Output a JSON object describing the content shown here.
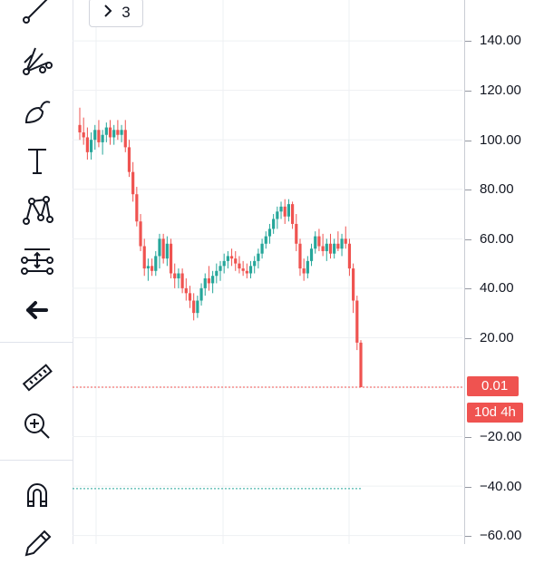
{
  "toolbar": {
    "tools": [
      {
        "name": "trend-line-icon"
      },
      {
        "name": "gann-fan-icon"
      },
      {
        "name": "brush-icon"
      },
      {
        "name": "text-icon"
      },
      {
        "name": "pattern-icon"
      },
      {
        "name": "prediction-icon"
      },
      {
        "name": "back-arrow-icon"
      },
      {
        "name": "ruler-icon"
      },
      {
        "name": "zoom-in-icon"
      },
      {
        "name": "magnet-icon"
      },
      {
        "name": "pencil-icon"
      }
    ]
  },
  "collapse_badge": {
    "label": "3",
    "icon": "chevron-right-icon"
  },
  "price_axis": {
    "ticks": [
      "140.00",
      "120.00",
      "100.00",
      "80.00",
      "60.00",
      "40.00",
      "20.00",
      "−20.00",
      "−40.00",
      "−60.00"
    ],
    "current_price": "0.01",
    "countdown": "10d 4h"
  },
  "colors": {
    "up": "#26a69a",
    "down": "#ef5350",
    "grid": "#eef0f3",
    "dotted_line": "#ef5350",
    "alt_line": "#26a69a"
  },
  "chart_data": {
    "type": "candlestick",
    "ylim": [
      -60,
      150
    ],
    "last_price": 0.01,
    "candles": [
      {
        "o": 106,
        "h": 113,
        "l": 100,
        "c": 103
      },
      {
        "o": 103,
        "h": 109,
        "l": 98,
        "c": 101
      },
      {
        "o": 101,
        "h": 105,
        "l": 92,
        "c": 95
      },
      {
        "o": 95,
        "h": 103,
        "l": 92,
        "c": 100
      },
      {
        "o": 100,
        "h": 106,
        "l": 96,
        "c": 104
      },
      {
        "o": 104,
        "h": 108,
        "l": 97,
        "c": 99
      },
      {
        "o": 99,
        "h": 104,
        "l": 94,
        "c": 102
      },
      {
        "o": 102,
        "h": 107,
        "l": 99,
        "c": 105
      },
      {
        "o": 105,
        "h": 108,
        "l": 98,
        "c": 101
      },
      {
        "o": 101,
        "h": 106,
        "l": 98,
        "c": 104
      },
      {
        "o": 104,
        "h": 108,
        "l": 100,
        "c": 102
      },
      {
        "o": 102,
        "h": 106,
        "l": 99,
        "c": 104
      },
      {
        "o": 104,
        "h": 108,
        "l": 95,
        "c": 97
      },
      {
        "o": 97,
        "h": 100,
        "l": 85,
        "c": 87
      },
      {
        "o": 87,
        "h": 91,
        "l": 75,
        "c": 78
      },
      {
        "o": 78,
        "h": 81,
        "l": 65,
        "c": 67
      },
      {
        "o": 67,
        "h": 70,
        "l": 55,
        "c": 57
      },
      {
        "o": 57,
        "h": 60,
        "l": 45,
        "c": 48
      },
      {
        "o": 48,
        "h": 52,
        "l": 43,
        "c": 49
      },
      {
        "o": 49,
        "h": 52,
        "l": 45,
        "c": 47
      },
      {
        "o": 47,
        "h": 55,
        "l": 45,
        "c": 53
      },
      {
        "o": 53,
        "h": 62,
        "l": 48,
        "c": 60
      },
      {
        "o": 60,
        "h": 62,
        "l": 50,
        "c": 52
      },
      {
        "o": 52,
        "h": 61,
        "l": 49,
        "c": 58
      },
      {
        "o": 58,
        "h": 60,
        "l": 44,
        "c": 46
      },
      {
        "o": 46,
        "h": 50,
        "l": 40,
        "c": 44
      },
      {
        "o": 44,
        "h": 48,
        "l": 40,
        "c": 46
      },
      {
        "o": 46,
        "h": 48,
        "l": 38,
        "c": 40
      },
      {
        "o": 40,
        "h": 44,
        "l": 35,
        "c": 38
      },
      {
        "o": 38,
        "h": 41,
        "l": 32,
        "c": 35
      },
      {
        "o": 35,
        "h": 38,
        "l": 27,
        "c": 30
      },
      {
        "o": 30,
        "h": 37,
        "l": 28,
        "c": 35
      },
      {
        "o": 35,
        "h": 42,
        "l": 33,
        "c": 40
      },
      {
        "o": 40,
        "h": 46,
        "l": 37,
        "c": 44
      },
      {
        "o": 44,
        "h": 49,
        "l": 39,
        "c": 42
      },
      {
        "o": 42,
        "h": 47,
        "l": 38,
        "c": 45
      },
      {
        "o": 45,
        "h": 50,
        "l": 42,
        "c": 47
      },
      {
        "o": 47,
        "h": 51,
        "l": 43,
        "c": 49
      },
      {
        "o": 49,
        "h": 54,
        "l": 46,
        "c": 51
      },
      {
        "o": 51,
        "h": 55,
        "l": 48,
        "c": 53
      },
      {
        "o": 53,
        "h": 56,
        "l": 49,
        "c": 52
      },
      {
        "o": 52,
        "h": 55,
        "l": 47,
        "c": 50
      },
      {
        "o": 50,
        "h": 53,
        "l": 46,
        "c": 48
      },
      {
        "o": 48,
        "h": 51,
        "l": 45,
        "c": 47
      },
      {
        "o": 47,
        "h": 50,
        "l": 44,
        "c": 46
      },
      {
        "o": 46,
        "h": 51,
        "l": 44,
        "c": 49
      },
      {
        "o": 49,
        "h": 53,
        "l": 46,
        "c": 51
      },
      {
        "o": 51,
        "h": 56,
        "l": 48,
        "c": 54
      },
      {
        "o": 54,
        "h": 60,
        "l": 52,
        "c": 58
      },
      {
        "o": 58,
        "h": 63,
        "l": 56,
        "c": 61
      },
      {
        "o": 61,
        "h": 66,
        "l": 58,
        "c": 64
      },
      {
        "o": 64,
        "h": 70,
        "l": 62,
        "c": 68
      },
      {
        "o": 68,
        "h": 73,
        "l": 64,
        "c": 71
      },
      {
        "o": 71,
        "h": 75,
        "l": 68,
        "c": 73
      },
      {
        "o": 73,
        "h": 76,
        "l": 66,
        "c": 69
      },
      {
        "o": 69,
        "h": 76,
        "l": 67,
        "c": 74
      },
      {
        "o": 74,
        "h": 75,
        "l": 64,
        "c": 66
      },
      {
        "o": 66,
        "h": 70,
        "l": 55,
        "c": 58
      },
      {
        "o": 58,
        "h": 60,
        "l": 45,
        "c": 48
      },
      {
        "o": 48,
        "h": 52,
        "l": 43,
        "c": 46
      },
      {
        "o": 46,
        "h": 53,
        "l": 44,
        "c": 51
      },
      {
        "o": 51,
        "h": 58,
        "l": 49,
        "c": 56
      },
      {
        "o": 56,
        "h": 63,
        "l": 54,
        "c": 61
      },
      {
        "o": 61,
        "h": 64,
        "l": 55,
        "c": 57
      },
      {
        "o": 57,
        "h": 62,
        "l": 53,
        "c": 55
      },
      {
        "o": 55,
        "h": 60,
        "l": 51,
        "c": 58
      },
      {
        "o": 58,
        "h": 62,
        "l": 52,
        "c": 54
      },
      {
        "o": 54,
        "h": 60,
        "l": 52,
        "c": 58
      },
      {
        "o": 58,
        "h": 63,
        "l": 55,
        "c": 56
      },
      {
        "o": 56,
        "h": 62,
        "l": 53,
        "c": 60
      },
      {
        "o": 60,
        "h": 65,
        "l": 56,
        "c": 58
      },
      {
        "o": 58,
        "h": 60,
        "l": 45,
        "c": 48
      },
      {
        "o": 48,
        "h": 50,
        "l": 30,
        "c": 35
      },
      {
        "o": 35,
        "h": 37,
        "l": 15,
        "c": 18
      },
      {
        "o": 18,
        "h": 19,
        "l": 0.01,
        "c": 0.01
      }
    ]
  }
}
